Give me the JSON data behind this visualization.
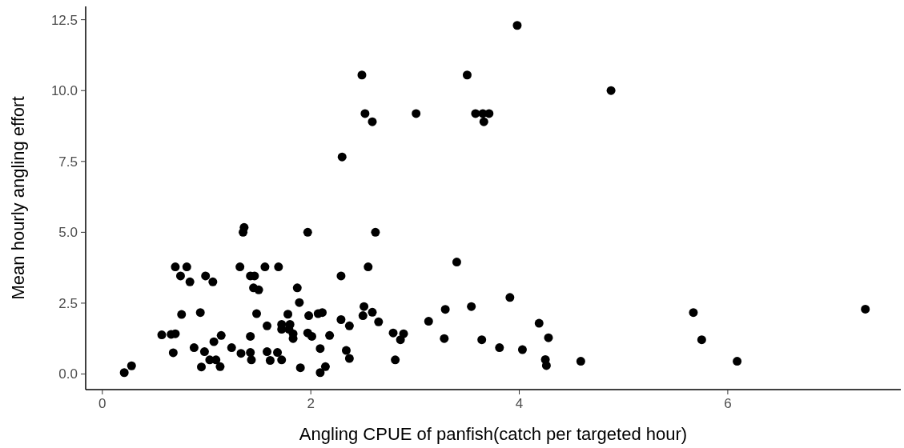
{
  "chart_data": {
    "type": "scatter",
    "xlabel": "Angling CPUE of panfish(catch per targeted hour)",
    "ylabel": "Mean hourly angling effort",
    "xlim": [
      -0.16,
      7.66
    ],
    "ylim": [
      -0.55,
      12.97
    ],
    "xticks": [
      0,
      2,
      4,
      6
    ],
    "yticks": [
      {
        "value": 0,
        "label": "0.0"
      },
      {
        "value": 2.5,
        "label": "2.5"
      },
      {
        "value": 5,
        "label": "5.0"
      },
      {
        "value": 7.5,
        "label": "7.5"
      },
      {
        "value": 10,
        "label": "10.0"
      },
      {
        "value": 12.5,
        "label": "12.5"
      }
    ],
    "grid": false,
    "marker": "circle",
    "series": [
      {
        "color": "#000000",
        "x": [
          3.98,
          2.49,
          3.5,
          4.88,
          2.52,
          2.59,
          3.01,
          3.58,
          3.65,
          3.71,
          3.66,
          2.3,
          1.36,
          1.35,
          0.7,
          0.81,
          0.75,
          0.84,
          0.99,
          1.06,
          1.32,
          1.42,
          1.46,
          1.45,
          1.5,
          1.56,
          1.69,
          0.76,
          0.94,
          1.48,
          1.78,
          1.58,
          1.72,
          1.8,
          1.72,
          1.79,
          1.83,
          1.83,
          0.57,
          0.66,
          0.7,
          1.14,
          1.07,
          1.42,
          0.68,
          0.88,
          0.98,
          1.03,
          1.09,
          1.13,
          0.95,
          1.24,
          1.33,
          1.42,
          1.43,
          1.58,
          1.61,
          1.68,
          1.72,
          0.21,
          0.28,
          1.97,
          2.62,
          3.4,
          2.55,
          2.29,
          1.87,
          1.89,
          3.54,
          3.29,
          2.51,
          2.5,
          2.59,
          2.65,
          3.13,
          1.98,
          2.07,
          2.11,
          2.29,
          2.37,
          1.97,
          2.01,
          2.18,
          2.09,
          2.34,
          2.37,
          1.9,
          2.14,
          2.09,
          2.79,
          2.89,
          2.86,
          2.81,
          3.28,
          3.91,
          3.64,
          3.81,
          4.03,
          4.19,
          4.28,
          4.25,
          4.26,
          4.59,
          5.67,
          5.75,
          6.09,
          7.32
        ],
        "values": [
          12.3,
          10.55,
          10.55,
          10.0,
          9.19,
          8.9,
          9.19,
          9.19,
          9.19,
          9.19,
          8.9,
          7.66,
          5.17,
          5.0,
          3.78,
          3.78,
          3.46,
          3.25,
          3.46,
          3.25,
          3.78,
          3.46,
          3.46,
          3.04,
          2.97,
          3.78,
          3.78,
          2.1,
          2.17,
          2.13,
          2.11,
          1.7,
          1.75,
          1.75,
          1.58,
          1.58,
          1.42,
          1.25,
          1.38,
          1.4,
          1.42,
          1.36,
          1.14,
          1.33,
          0.75,
          0.93,
          0.79,
          0.5,
          0.5,
          0.26,
          0.25,
          0.93,
          0.73,
          0.76,
          0.5,
          0.79,
          0.48,
          0.76,
          0.5,
          0.05,
          0.29,
          5.0,
          5.0,
          3.95,
          3.78,
          3.46,
          3.04,
          2.52,
          2.38,
          2.28,
          2.38,
          2.06,
          2.18,
          1.84,
          1.86,
          2.06,
          2.13,
          2.17,
          1.92,
          1.7,
          1.45,
          1.33,
          1.36,
          0.9,
          0.83,
          0.55,
          0.22,
          0.26,
          0.05,
          1.45,
          1.42,
          1.21,
          0.5,
          1.25,
          2.7,
          1.21,
          0.93,
          0.86,
          1.79,
          1.28,
          0.51,
          0.3,
          0.45,
          2.17,
          1.21,
          0.45,
          2.29
        ]
      }
    ]
  }
}
